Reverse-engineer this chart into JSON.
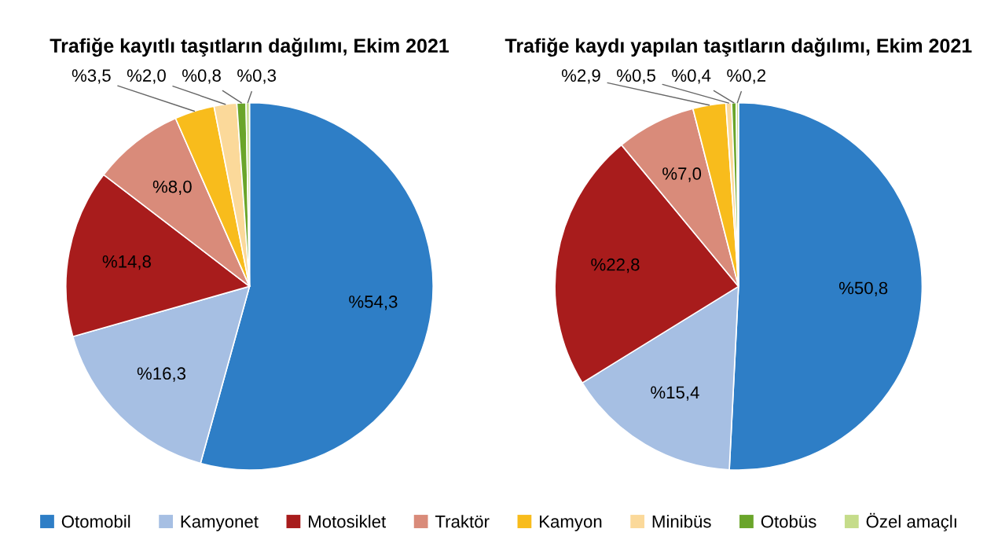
{
  "chart_data": [
    {
      "type": "pie",
      "title": "Trafiğe kayıtlı taşıtların dağılımı, Ekim 2021",
      "categories": [
        "Otomobil",
        "Kamyonet",
        "Motosiklet",
        "Traktör",
        "Kamyon",
        "Minibüs",
        "Otobüs",
        "Özel amaçlı"
      ],
      "values": [
        54.3,
        16.3,
        14.8,
        8.0,
        3.5,
        2.0,
        0.8,
        0.3
      ],
      "value_labels": [
        "%54,3",
        "%16,3",
        "%14,8",
        "%8,0",
        "%3,5",
        "%2,0",
        "%0,8",
        "%0,3"
      ],
      "colors": [
        "#2e7ec6",
        "#a6bfe3",
        "#a81c1c",
        "#d98b7a",
        "#f8bc1c",
        "#fbd99a",
        "#6aa52a",
        "#c5dc8a"
      ],
      "legend": "bottom"
    },
    {
      "type": "pie",
      "title": "Trafiğe kaydı yapılan taşıtların dağılımı, Ekim 2021",
      "categories": [
        null,
        null,
        null,
        null,
        null,
        null,
        null,
        null
      ],
      "values": [
        50.8,
        15.4,
        22.8,
        7.0,
        2.9,
        0.5,
        0.4,
        0.2
      ],
      "value_labels": [
        "%50,8",
        "%15,4",
        "%22,8",
        "%7,0",
        "%2,9",
        "%0,5",
        "%0,4",
        "%0,2"
      ],
      "colors": [
        "#2e7ec6",
        "#a6bfe3",
        "#a81c1c",
        "#d98b7a",
        "#f8bc1c",
        "#fbd99a",
        "#6aa52a",
        "#c5dc8a"
      ],
      "legend": false
    }
  ]
}
